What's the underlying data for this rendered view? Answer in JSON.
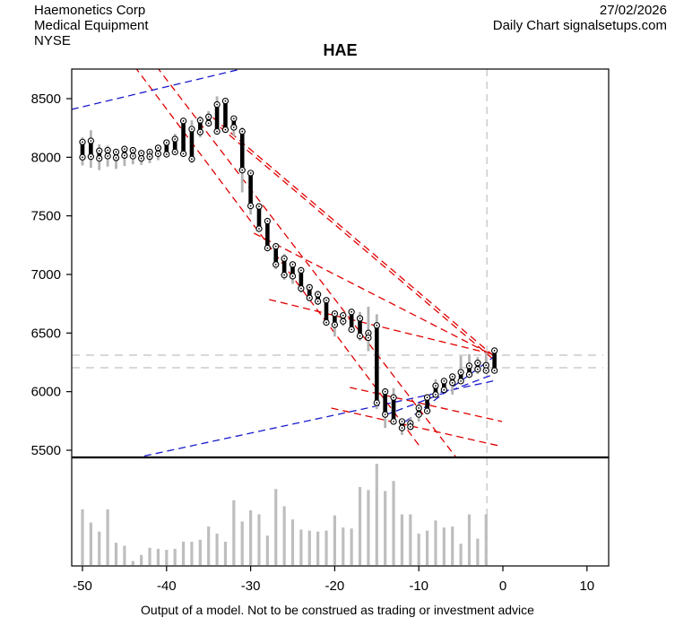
{
  "header": {
    "company": "Haemonetics Corp",
    "industry": "Medical Equipment",
    "exchange": "NYSE",
    "date": "27/02/2026",
    "source": "Daily Chart signalsetups.com"
  },
  "title": "HAE",
  "footer": {
    "disclaimer": "Output of a model. Not to be construed as trading or investment advice"
  },
  "colors": {
    "red_line": "#e00000",
    "blue_line": "#1a1acc",
    "bar_body": "#000000",
    "bar_wick": "#b3b3b3",
    "volume_bar": "#bebebe",
    "reference_gray": "#cccccc",
    "axis": "#000000"
  },
  "chart_data": {
    "type": "candlestick_with_volume",
    "title": "HAE",
    "x_axis": {
      "ticks": [
        -50,
        -40,
        -30,
        -20,
        -10,
        0,
        10
      ],
      "range": [
        -53,
        12.5
      ]
    },
    "y_axis": {
      "ticks": [
        5500,
        6000,
        6500,
        7000,
        7500,
        8000,
        8500
      ],
      "range": [
        5440,
        8750
      ]
    },
    "reference_lines": {
      "vertical_x": -1.9,
      "horizontal_prices": [
        6311,
        6204
      ]
    },
    "price_bars": {
      "columns": [
        "x",
        "high",
        "low",
        "body_top",
        "body_bottom"
      ],
      "rows": [
        [
          -50,
          8170,
          7930,
          8130,
          8000
        ],
        [
          -49,
          8230,
          7910,
          8140,
          8005
        ],
        [
          -48,
          8110,
          7890,
          8055,
          7990
        ],
        [
          -47,
          8100,
          7920,
          8060,
          8010
        ],
        [
          -46,
          8060,
          7900,
          8045,
          7995
        ],
        [
          -45,
          8090,
          7925,
          8070,
          8015
        ],
        [
          -44,
          8080,
          7940,
          8060,
          8010
        ],
        [
          -43,
          8060,
          7935,
          8035,
          7990
        ],
        [
          -42,
          8070,
          7950,
          8045,
          8005
        ],
        [
          -41,
          8100,
          7975,
          8080,
          8030
        ],
        [
          -40,
          8150,
          8000,
          8125,
          8025
        ],
        [
          -39,
          8200,
          8020,
          8155,
          8045
        ],
        [
          -38,
          8335,
          8005,
          8310,
          8030
        ],
        [
          -37,
          8315,
          7950,
          8240,
          7985
        ],
        [
          -36,
          8350,
          8170,
          8315,
          8215
        ],
        [
          -35,
          8395,
          8260,
          8345,
          8290
        ],
        [
          -34,
          8520,
          8195,
          8450,
          8220
        ],
        [
          -33,
          8500,
          8210,
          8480,
          8235
        ],
        [
          -32,
          8335,
          8180,
          8330,
          8255
        ],
        [
          -31,
          8255,
          7700,
          8220,
          7890
        ],
        [
          -30,
          7890,
          7510,
          7865,
          7585
        ],
        [
          -29,
          7600,
          7365,
          7580,
          7390
        ],
        [
          -28,
          7480,
          7200,
          7455,
          7225
        ],
        [
          -27,
          7265,
          7045,
          7240,
          7085
        ],
        [
          -26,
          7175,
          6955,
          7135,
          6995
        ],
        [
          -25,
          7100,
          6920,
          7085,
          6985
        ],
        [
          -24,
          7040,
          6845,
          7035,
          6880
        ],
        [
          -23,
          6900,
          6790,
          6890,
          6800
        ],
        [
          -22,
          6860,
          6740,
          6830,
          6770
        ],
        [
          -21,
          6790,
          6570,
          6780,
          6590
        ],
        [
          -20,
          6680,
          6470,
          6665,
          6570
        ],
        [
          -19,
          6680,
          6560,
          6650,
          6600
        ],
        [
          -18,
          6690,
          6510,
          6680,
          6530
        ],
        [
          -17,
          6680,
          6435,
          6625,
          6475
        ],
        [
          -16,
          6725,
          6345,
          6500,
          6460
        ],
        [
          -15,
          6660,
          5850,
          6565,
          5905
        ],
        [
          -14,
          6030,
          5690,
          6000,
          5805
        ],
        [
          -13,
          6030,
          5720,
          5950,
          5745
        ],
        [
          -12,
          5770,
          5630,
          5745,
          5690
        ],
        [
          -11,
          5780,
          5680,
          5730,
          5700
        ],
        [
          -10,
          5900,
          5745,
          5860,
          5805
        ],
        [
          -9,
          5970,
          5820,
          5950,
          5835
        ],
        [
          -8,
          6105,
          5960,
          6050,
          5975
        ],
        [
          -7,
          6110,
          6000,
          6090,
          6015
        ],
        [
          -6,
          6130,
          5975,
          6128,
          6075
        ],
        [
          -5,
          6305,
          6070,
          6165,
          6090
        ],
        [
          -4,
          6320,
          6125,
          6220,
          6145
        ],
        [
          -3,
          6295,
          6150,
          6245,
          6190
        ],
        [
          -2,
          6335,
          6160,
          6225,
          6180
        ],
        [
          -1,
          6375,
          6160,
          6350,
          6180
        ]
      ]
    },
    "volume_bars": {
      "columns": [
        "x",
        "relative_height"
      ],
      "rows": [
        [
          -50,
          55
        ],
        [
          -49,
          42
        ],
        [
          -48,
          33
        ],
        [
          -47,
          55
        ],
        [
          -46,
          22
        ],
        [
          -45,
          19
        ],
        [
          -44,
          4
        ],
        [
          -43,
          10
        ],
        [
          -42,
          17
        ],
        [
          -41,
          16
        ],
        [
          -40,
          15
        ],
        [
          -39,
          16
        ],
        [
          -38,
          23
        ],
        [
          -37,
          23
        ],
        [
          -36,
          25
        ],
        [
          -35,
          38
        ],
        [
          -34,
          31
        ],
        [
          -33,
          23
        ],
        [
          -32,
          64
        ],
        [
          -31,
          43
        ],
        [
          -30,
          54
        ],
        [
          -29,
          50
        ],
        [
          -28,
          29
        ],
        [
          -27,
          75
        ],
        [
          -26,
          58
        ],
        [
          -25,
          45
        ],
        [
          -24,
          35
        ],
        [
          -23,
          34
        ],
        [
          -22,
          33
        ],
        [
          -21,
          34
        ],
        [
          -20,
          49
        ],
        [
          -19,
          37
        ],
        [
          -18,
          36
        ],
        [
          -17,
          77
        ],
        [
          -16,
          74
        ],
        [
          -15,
          100
        ],
        [
          -14,
          73
        ],
        [
          -13,
          83
        ],
        [
          -12,
          50
        ],
        [
          -11,
          50
        ],
        [
          -10,
          31
        ],
        [
          -9,
          34
        ],
        [
          -8,
          44
        ],
        [
          -7,
          37
        ],
        [
          -6,
          38
        ],
        [
          -5,
          21
        ],
        [
          -4,
          50
        ],
        [
          -3,
          26
        ],
        [
          -2,
          50
        ]
      ]
    },
    "trendlines": [
      {
        "color": "red",
        "from": [
          -43.8,
          8775
        ],
        "to": [
          -9.7,
          5515
        ]
      },
      {
        "color": "red",
        "from": [
          -41.2,
          8775
        ],
        "to": [
          -5.4,
          5423
        ]
      },
      {
        "color": "red",
        "from": [
          -34.5,
          8339
        ],
        "to": [
          -1.2,
          6311
        ]
      },
      {
        "color": "red",
        "from": [
          -33.6,
          8255
        ],
        "to": [
          -1.2,
          6280
        ]
      },
      {
        "color": "red",
        "from": [
          -29.6,
          7352
        ],
        "to": [
          -1.2,
          6311
        ]
      },
      {
        "color": "red",
        "from": [
          -27.8,
          6786
        ],
        "to": [
          -1.2,
          6320
        ]
      },
      {
        "color": "red",
        "from": [
          -20.4,
          5860
        ],
        "to": [
          -0.6,
          5540
        ]
      },
      {
        "color": "red",
        "from": [
          -18.2,
          6036
        ],
        "to": [
          -0.1,
          5745
        ]
      },
      {
        "color": "blue",
        "from": [
          -51.3,
          8408
        ],
        "to": [
          -31.2,
          8752
        ]
      },
      {
        "color": "blue",
        "from": [
          -44.0,
          5430
        ],
        "to": [
          -0.9,
          6095
        ]
      },
      {
        "color": "blue",
        "from": [
          -14.0,
          5800
        ],
        "to": [
          -1.2,
          6145
        ]
      },
      {
        "color": "blue",
        "from": [
          -11.6,
          5745
        ],
        "to": [
          -1.2,
          6290
        ]
      }
    ]
  }
}
